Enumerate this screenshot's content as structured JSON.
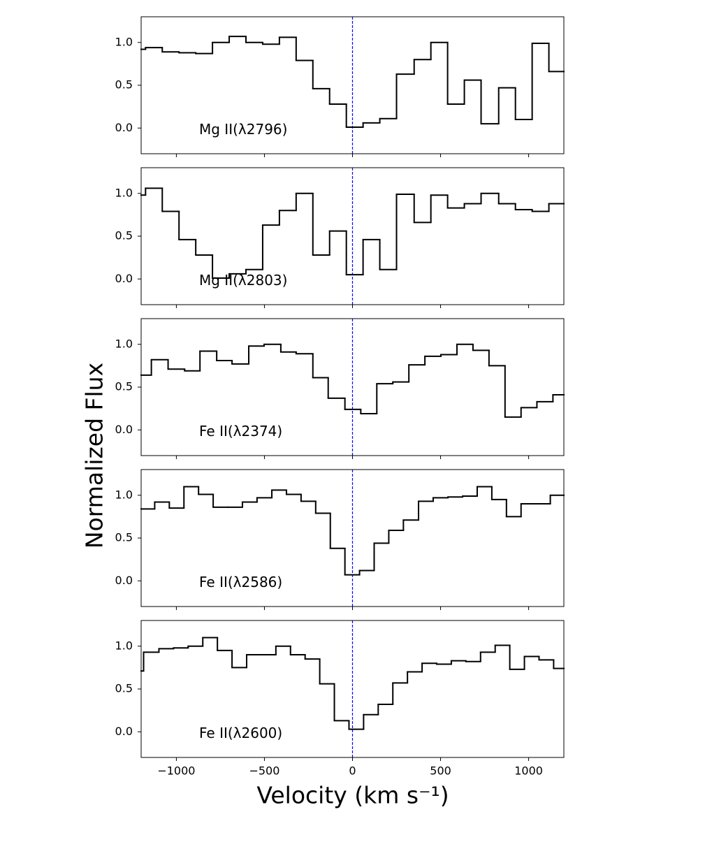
{
  "chart_data": [
    {
      "type": "step",
      "label": "Mg II(λ2796)",
      "color": "#000000",
      "vline": 0,
      "vline_color": "#0000ff",
      "xlim": [
        -1200,
        1200
      ],
      "ylim": [
        -0.3,
        1.3
      ],
      "yticks": [
        {
          "value": 0,
          "label": "0.0"
        },
        {
          "value": 0.5,
          "label": "0.5"
        },
        {
          "value": 1,
          "label": "1.0"
        }
      ],
      "x": [
        -1200,
        -1175,
        -1080,
        -985,
        -890,
        -795,
        -700,
        -605,
        -510,
        -415,
        -320,
        -225,
        -130,
        -35,
        60,
        155,
        250,
        350,
        445,
        540,
        635,
        730,
        830,
        925,
        1020,
        1115
      ],
      "values": [
        0.92,
        0.94,
        0.89,
        0.88,
        0.87,
        1.0,
        1.07,
        1.0,
        0.98,
        1.06,
        0.79,
        0.46,
        0.28,
        0.01,
        0.06,
        0.11,
        0.63,
        0.8,
        1.0,
        0.28,
        0.56,
        0.05,
        0.47,
        0.1,
        0.99,
        0.66
      ]
    },
    {
      "type": "step",
      "label": "Mg II(λ2803)",
      "color": "#000000",
      "vline": 0,
      "vline_color": "#0000ff",
      "xlim": [
        -1200,
        1200
      ],
      "ylim": [
        -0.3,
        1.3
      ],
      "yticks": [
        {
          "value": 0,
          "label": "0.0"
        },
        {
          "value": 0.5,
          "label": "0.5"
        },
        {
          "value": 1,
          "label": "1.0"
        }
      ],
      "x": [
        -1200,
        -1175,
        -1080,
        -985,
        -890,
        -795,
        -700,
        -605,
        -510,
        -415,
        -320,
        -225,
        -130,
        -35,
        60,
        155,
        250,
        350,
        445,
        540,
        635,
        730,
        830,
        925,
        1020,
        1115
      ],
      "values": [
        0.98,
        1.06,
        0.79,
        0.46,
        0.28,
        0.01,
        0.06,
        0.11,
        0.63,
        0.8,
        1.0,
        0.28,
        0.56,
        0.05,
        0.46,
        0.11,
        0.99,
        0.66,
        0.98,
        0.83,
        0.88,
        1.0,
        0.88,
        0.81,
        0.79,
        0.88
      ]
    },
    {
      "type": "step",
      "label": "Fe II(λ2374)",
      "ylabel": "Normalized Flux",
      "color": "#000000",
      "vline": 0,
      "vline_color": "#0000ff",
      "xlim": [
        -1200,
        1200
      ],
      "ylim": [
        -0.3,
        1.3
      ],
      "yticks": [
        {
          "value": 0,
          "label": "0.0"
        },
        {
          "value": 0.5,
          "label": "0.5"
        },
        {
          "value": 1,
          "label": "1.0"
        }
      ],
      "x": [
        -1200,
        -1142,
        -1047,
        -953,
        -866,
        -771,
        -684,
        -589,
        -502,
        -407,
        -320,
        -225,
        -138,
        -43,
        47,
        138,
        229,
        320,
        411,
        502,
        593,
        684,
        775,
        866,
        957,
        1047,
        1138
      ],
      "values": [
        0.64,
        0.82,
        0.71,
        0.69,
        0.92,
        0.81,
        0.77,
        0.98,
        1.0,
        0.91,
        0.89,
        0.61,
        0.37,
        0.24,
        0.19,
        0.54,
        0.56,
        0.76,
        0.86,
        0.88,
        1.0,
        0.93,
        0.75,
        0.15,
        0.26,
        0.33,
        0.41
      ]
    },
    {
      "type": "step",
      "label": "Fe II(λ2586)",
      "color": "#000000",
      "vline": 0,
      "vline_color": "#0000ff",
      "xlim": [
        -1200,
        1200
      ],
      "ylim": [
        -0.3,
        1.3
      ],
      "yticks": [
        {
          "value": 0,
          "label": "0.0"
        },
        {
          "value": 0.5,
          "label": "0.5"
        },
        {
          "value": 1,
          "label": "1.0"
        }
      ],
      "x": [
        -1200,
        -1123,
        -1040,
        -957,
        -874,
        -791,
        -708,
        -625,
        -542,
        -458,
        -375,
        -292,
        -209,
        -126,
        -43,
        40,
        123,
        206,
        289,
        375,
        458,
        542,
        625,
        708,
        791,
        874,
        957,
        1040,
        1123
      ],
      "values": [
        0.84,
        0.92,
        0.85,
        1.1,
        1.01,
        0.86,
        0.86,
        0.92,
        0.97,
        1.06,
        1.01,
        0.93,
        0.79,
        0.38,
        0.07,
        0.12,
        0.44,
        0.59,
        0.71,
        0.93,
        0.97,
        0.98,
        0.99,
        1.1,
        0.95,
        0.75,
        0.9,
        0.9,
        1.0
      ]
    },
    {
      "type": "step",
      "label": "Fe II(λ2600)",
      "xlabel": "Velocity (km s⁻¹)",
      "color": "#000000",
      "vline": 0,
      "vline_color": "#0000ff",
      "xlim": [
        -1200,
        1200
      ],
      "ylim": [
        -0.3,
        1.3
      ],
      "xticks": [
        {
          "value": -1000,
          "label": "−1000"
        },
        {
          "value": -500,
          "label": "−500"
        },
        0,
        500,
        1000
      ],
      "yticks": [
        {
          "value": 0,
          "label": "0.0"
        },
        {
          "value": 0.5,
          "label": "0.5"
        },
        {
          "value": 1,
          "label": "1.0"
        }
      ],
      "x": [
        -1200,
        -1186,
        -1099,
        -1016,
        -933,
        -850,
        -767,
        -684,
        -601,
        -518,
        -435,
        -352,
        -269,
        -186,
        -103,
        -20,
        63,
        146,
        229,
        312,
        395,
        478,
        561,
        644,
        727,
        810,
        893,
        976,
        1059,
        1142
      ],
      "values": [
        0.71,
        0.93,
        0.97,
        0.98,
        1.0,
        1.1,
        0.95,
        0.75,
        0.9,
        0.9,
        1.0,
        0.9,
        0.85,
        0.56,
        0.13,
        0.03,
        0.2,
        0.32,
        0.57,
        0.7,
        0.8,
        0.79,
        0.83,
        0.82,
        0.93,
        1.01,
        0.73,
        0.88,
        0.84,
        0.74
      ]
    }
  ]
}
